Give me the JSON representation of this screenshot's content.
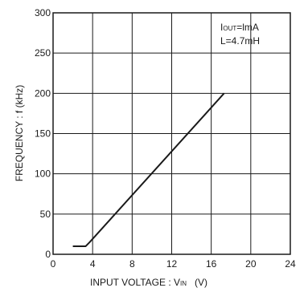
{
  "chart_data": {
    "type": "line",
    "title": "",
    "xlabel": "INPUT VOLTAGE : V",
    "xlabel_sub": "IN",
    "xlabel_unit": "(V)",
    "ylabel": "FREQUENCY : f   (kHz)",
    "xlim": [
      0,
      24
    ],
    "ylim": [
      0,
      300
    ],
    "x_ticks": [
      0,
      4,
      8,
      12,
      16,
      20,
      24
    ],
    "y_ticks": [
      0,
      50,
      100,
      150,
      200,
      250,
      300
    ],
    "x_tick_labels": [
      "0",
      "4",
      "8",
      "12",
      "16",
      "20",
      "24"
    ],
    "y_tick_labels": [
      "0",
      "50",
      "100",
      "150",
      "200",
      "250",
      "300"
    ],
    "grid": true,
    "annotations": {
      "iout_prefix": "I",
      "iout_sub": "OUT",
      "iout_value": "=lmA",
      "inductance": "L=4.7mH"
    },
    "series": [
      {
        "x": [
          2.0,
          3.3,
          3.7,
          17.3
        ],
        "y": [
          10,
          10,
          15,
          200
        ],
        "color": "#1a1a1a"
      }
    ]
  }
}
